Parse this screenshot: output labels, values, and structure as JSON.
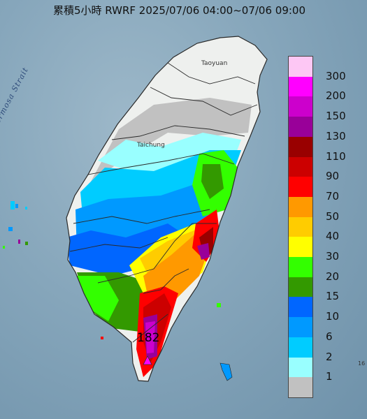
{
  "title": "累積5小時 RWRF 2025/07/06 04:00~07/06 09:00",
  "strait_label": "Formosa Strait",
  "cities": [
    {
      "name": "Taoyuan"
    },
    {
      "name": "Taichung"
    }
  ],
  "max_label": "182",
  "corner_label": "16",
  "legend": {
    "colors": [
      "#fdc7f4",
      "#ff00ff",
      "#cc00cc",
      "#990099",
      "#990000",
      "#cc0000",
      "#ff0000",
      "#ff9900",
      "#ffcc00",
      "#ffff00",
      "#33ff00",
      "#339900",
      "#0066ff",
      "#0099ff",
      "#00ccff",
      "#99ffff",
      "#c1c1c1"
    ],
    "labels": [
      "300",
      "200",
      "150",
      "130",
      "110",
      "90",
      "70",
      "50",
      "40",
      "30",
      "20",
      "15",
      "10",
      "6",
      "2",
      "1"
    ]
  }
}
